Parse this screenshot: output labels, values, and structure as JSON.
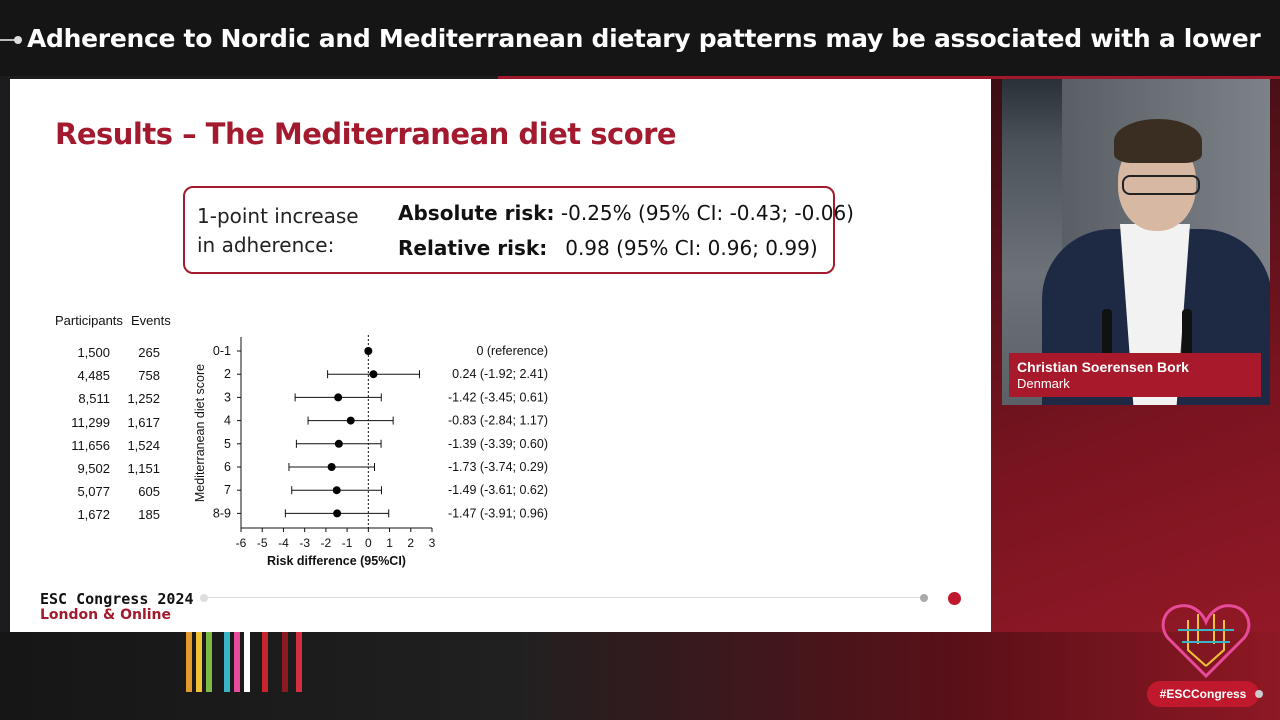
{
  "banner": {
    "title": "Adherence to Nordic and Mediterranean dietary patterns may be associated with a lower absolute ..."
  },
  "slide": {
    "title": "Results – The Mediterranean diet score",
    "box": {
      "label_line1": "1-point increase",
      "label_line2": "in adherence:",
      "abs_label": "Absolute risk:",
      "abs_value": "-0.25% (95% CI: -0.43; -0.06)",
      "rel_label": "Relative risk:",
      "rel_value": "0.98 (95% CI: 0.96; 0.99)"
    },
    "table_headers": {
      "participants": "Participants",
      "events": "Events"
    },
    "rows": [
      {
        "participants": "1,500",
        "events": "265",
        "score": "0-1",
        "estimate": "0 (reference)"
      },
      {
        "participants": "4,485",
        "events": "758",
        "score": "2",
        "estimate": "0.24 (-1.92; 2.41)"
      },
      {
        "participants": "8,511",
        "events": "1,252",
        "score": "3",
        "estimate": "-1.42 (-3.45; 0.61)"
      },
      {
        "participants": "11,299",
        "events": "1,617",
        "score": "4",
        "estimate": "-0.83 (-2.84; 1.17)"
      },
      {
        "participants": "11,656",
        "events": "1,524",
        "score": "5",
        "estimate": "-1.39 (-3.39; 0.60)"
      },
      {
        "participants": "9,502",
        "events": "1,151",
        "score": "6",
        "estimate": "-1.73 (-3.74; 0.29)"
      },
      {
        "participants": "5,077",
        "events": "605",
        "score": "7",
        "estimate": "-1.49 (-3.61; 0.62)"
      },
      {
        "participants": "1,672",
        "events": "185",
        "score": "8-9",
        "estimate": "-1.47 (-3.91; 0.96)"
      }
    ],
    "footer": {
      "congress": "ESC Congress 2024",
      "location": "London & Online"
    }
  },
  "chart_data": {
    "type": "forest",
    "xlabel": "Risk difference (95%CI)",
    "ylabel": "Mediterranean diet score",
    "xlim": [
      -6,
      3
    ],
    "xticks": [
      "-6",
      "-5",
      "-4",
      "-3",
      "-2",
      "-1",
      "0",
      "1",
      "2",
      "3"
    ],
    "reference_line": 0,
    "categories": [
      "0-1",
      "2",
      "3",
      "4",
      "5",
      "6",
      "7",
      "8-9"
    ],
    "estimates": [
      0,
      0.24,
      -1.42,
      -0.83,
      -1.39,
      -1.73,
      -1.49,
      -1.47
    ],
    "lower": [
      0,
      -1.92,
      -3.45,
      -2.84,
      -3.39,
      -3.74,
      -3.61,
      -3.91
    ],
    "upper": [
      0,
      2.41,
      0.61,
      1.17,
      0.6,
      0.29,
      0.62,
      0.96
    ]
  },
  "speaker": {
    "name": "Christian Soerensen Bork",
    "country": "Denmark"
  },
  "hashtag": "#ESCCongress",
  "colors": {
    "accent": "#a31a2e",
    "banner_bg": "#151515"
  }
}
